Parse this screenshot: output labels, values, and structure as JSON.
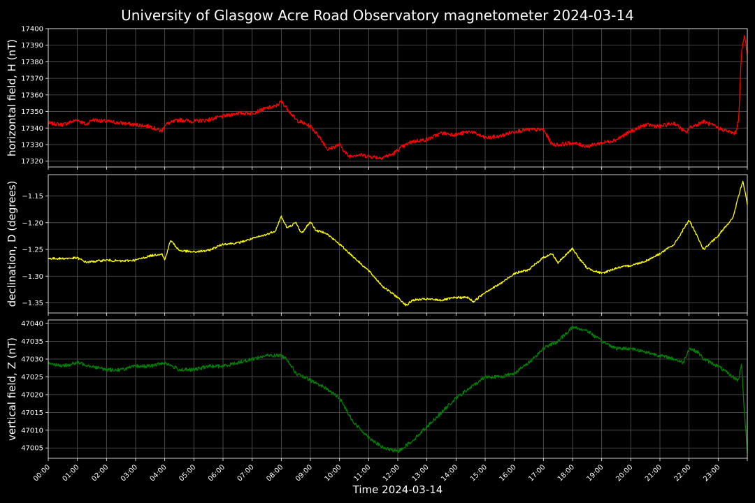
{
  "chart_data": {
    "type": "line",
    "title": "University of Glasgow Acre Road Observatory magnetometer 2024-03-14",
    "xlabel": "Time 2024-03-14",
    "x_unit": "hours",
    "xlim": [
      0,
      24
    ],
    "x_tick_labels": [
      "00:00",
      "01:00",
      "02:00",
      "03:00",
      "04:00",
      "05:00",
      "06:00",
      "07:00",
      "08:00",
      "09:00",
      "10:00",
      "11:00",
      "12:00",
      "13:00",
      "14:00",
      "15:00",
      "16:00",
      "17:00",
      "18:00",
      "19:00",
      "20:00",
      "21:00",
      "22:00",
      "23:00"
    ],
    "grid": true,
    "panels": [
      {
        "ylabel": "horizontal field, H (nT)",
        "ylim": [
          17316.5,
          17400
        ],
        "yticks": [
          17320,
          17330,
          17340,
          17350,
          17360,
          17370,
          17380,
          17390,
          17400
        ],
        "ytick_labels": [
          "17320",
          "17330",
          "17340",
          "17350",
          "17360",
          "17370",
          "17380",
          "17390",
          "17400"
        ],
        "color": "#ff0000",
        "noise": 1.2,
        "x": [
          0,
          0.5,
          1.0,
          1.3,
          1.5,
          2.0,
          2.5,
          3.0,
          3.5,
          3.9,
          4.0,
          4.5,
          5.0,
          5.5,
          6.0,
          6.5,
          7.0,
          7.5,
          7.8,
          8.0,
          8.2,
          8.5,
          9.0,
          9.3,
          9.6,
          10.0,
          10.3,
          10.6,
          11.0,
          11.4,
          11.8,
          12.1,
          12.5,
          13.0,
          13.5,
          14.0,
          14.5,
          15.0,
          15.5,
          16.0,
          16.5,
          17.0,
          17.3,
          17.5,
          18.0,
          18.5,
          19.0,
          19.5,
          20.0,
          20.5,
          21.0,
          21.5,
          21.9,
          22.0,
          22.5,
          23.0,
          23.5,
          23.6,
          23.7,
          23.8,
          23.9,
          24.0
        ],
        "values": [
          17343,
          17342,
          17345,
          17342,
          17345,
          17344,
          17343,
          17342,
          17341,
          17338,
          17342,
          17345,
          17344,
          17345,
          17347,
          17349,
          17349,
          17352,
          17353,
          17356,
          17352,
          17345,
          17341,
          17335,
          17327,
          17330,
          17323,
          17324,
          17323,
          17322,
          17324,
          17328,
          17332,
          17333,
          17337,
          17336,
          17338,
          17334,
          17335,
          17338,
          17339,
          17339,
          17330,
          17330,
          17331,
          17329,
          17331,
          17333,
          17338,
          17342,
          17341,
          17343,
          17337,
          17340,
          17344,
          17340,
          17337,
          17337,
          17345,
          17385,
          17396,
          17385
        ]
      },
      {
        "ylabel": "declination, D (degrees)",
        "ylim": [
          -1.369,
          -1.11
        ],
        "yticks": [
          -1.35,
          -1.3,
          -1.25,
          -1.2,
          -1.15
        ],
        "ytick_labels": [
          "−1.35",
          "−1.30",
          "−1.25",
          "−1.20",
          "−1.15"
        ],
        "color": "#ffff00",
        "noise": 0.002,
        "x": [
          0,
          0.5,
          1.0,
          1.3,
          2.0,
          2.5,
          3.0,
          3.5,
          3.9,
          4.0,
          4.2,
          4.5,
          5.0,
          5.5,
          6.0,
          6.5,
          7.0,
          7.5,
          7.8,
          8.0,
          8.2,
          8.5,
          8.7,
          9.0,
          9.2,
          9.5,
          10.0,
          10.5,
          11.0,
          11.5,
          12.0,
          12.3,
          12.5,
          13.0,
          13.5,
          14.0,
          14.4,
          14.6,
          15.0,
          15.5,
          16.0,
          16.5,
          17.0,
          17.3,
          17.5,
          18.0,
          18.2,
          18.5,
          19.0,
          19.5,
          20.0,
          20.5,
          21.0,
          21.5,
          22.0,
          22.5,
          23.0,
          23.2,
          23.5,
          23.7,
          23.85,
          24.0
        ],
        "values": [
          -1.267,
          -1.267,
          -1.266,
          -1.274,
          -1.27,
          -1.272,
          -1.27,
          -1.262,
          -1.258,
          -1.27,
          -1.233,
          -1.252,
          -1.255,
          -1.252,
          -1.24,
          -1.238,
          -1.23,
          -1.222,
          -1.215,
          -1.188,
          -1.21,
          -1.2,
          -1.22,
          -1.198,
          -1.215,
          -1.218,
          -1.24,
          -1.265,
          -1.29,
          -1.32,
          -1.34,
          -1.355,
          -1.345,
          -1.343,
          -1.345,
          -1.34,
          -1.34,
          -1.348,
          -1.33,
          -1.315,
          -1.295,
          -1.288,
          -1.265,
          -1.258,
          -1.275,
          -1.248,
          -1.265,
          -1.285,
          -1.295,
          -1.285,
          -1.28,
          -1.272,
          -1.258,
          -1.24,
          -1.195,
          -1.25,
          -1.225,
          -1.21,
          -1.192,
          -1.15,
          -1.122,
          -1.165
        ]
      },
      {
        "ylabel": "vertical field, Z (nT)",
        "ylim": [
          47002.1,
          47041
        ],
        "yticks": [
          47005,
          47010,
          47015,
          47020,
          47025,
          47030,
          47035,
          47040
        ],
        "ytick_labels": [
          "47005",
          "47010",
          "47015",
          "47020",
          "47025",
          "47030",
          "47035",
          "47040"
        ],
        "color": "#008000",
        "noise": 0.5,
        "x": [
          0,
          0.5,
          1.0,
          1.5,
          2.0,
          2.5,
          3.0,
          3.5,
          4.0,
          4.5,
          5.0,
          5.5,
          6.0,
          6.5,
          7.0,
          7.5,
          8.0,
          8.2,
          8.5,
          9.0,
          9.5,
          10.0,
          10.5,
          11.0,
          11.5,
          12.0,
          12.5,
          13.0,
          13.5,
          14.0,
          14.5,
          15.0,
          15.5,
          16.0,
          16.5,
          17.0,
          17.5,
          18.0,
          18.5,
          19.0,
          19.5,
          20.0,
          20.5,
          21.0,
          21.5,
          21.8,
          22.0,
          22.3,
          22.5,
          23.0,
          23.5,
          23.7,
          23.8,
          23.9,
          24.0
        ],
        "values": [
          47029,
          47028,
          47029,
          47028,
          47027,
          47027,
          47028,
          47028,
          47029,
          47027,
          47027,
          47028,
          47028,
          47029,
          47030,
          47031,
          47031,
          47030,
          47026,
          47024,
          47022,
          47019,
          47012,
          47008,
          47005,
          47004,
          47007,
          47011,
          47015,
          47019,
          47022,
          47025,
          47025,
          47026,
          47029,
          47033,
          47035,
          47039,
          47038,
          47035,
          47033,
          47033,
          47032,
          47031,
          47030,
          47029,
          47033,
          47032,
          47030,
          47028,
          47025,
          47024,
          47029,
          47015,
          47004
        ]
      }
    ]
  }
}
